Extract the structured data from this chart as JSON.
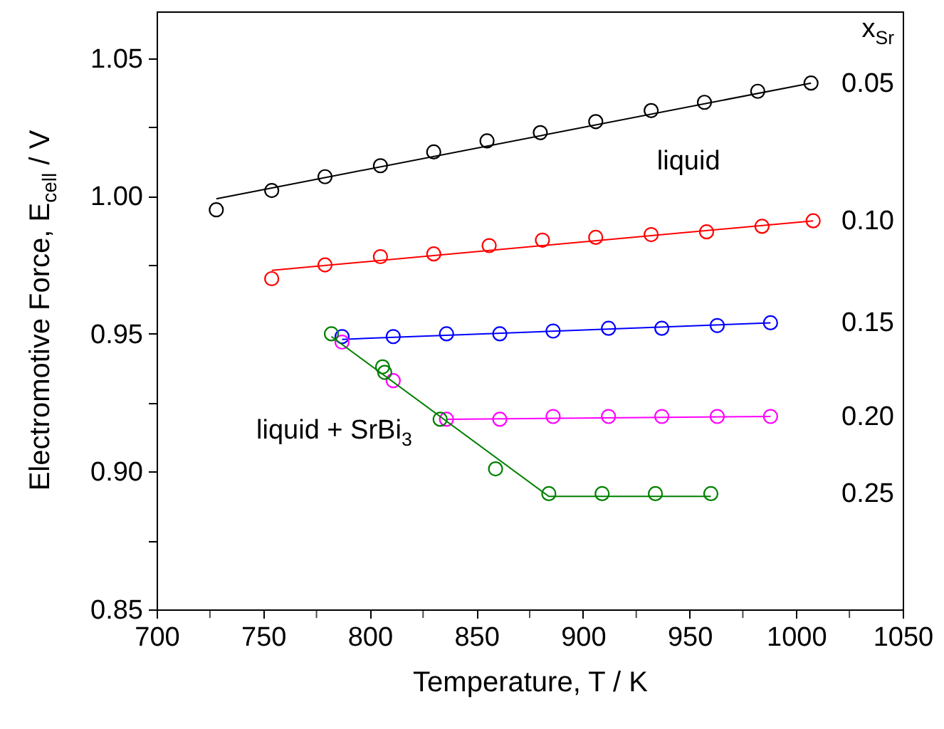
{
  "chart_data": {
    "type": "scatter",
    "xlabel": "Temperature, T / K",
    "ylabel": "Electromotive Force, E$_{cell}$ / V",
    "legend_title": "x$_{Sr}$",
    "legend": "right",
    "xlim": [
      700,
      1050
    ],
    "ylim": [
      0.85,
      1.067
    ],
    "xticks": [
      700,
      {
        "value": 725,
        "label": null
      },
      750,
      {
        "value": 775,
        "label": null
      },
      800,
      {
        "value": 825,
        "label": null
      },
      850,
      {
        "value": 875,
        "label": null
      },
      900,
      {
        "value": 925,
        "label": null
      },
      950,
      {
        "value": 975,
        "label": null
      },
      1000,
      {
        "value": 1025,
        "label": null
      },
      1050
    ],
    "yticks": [
      0.85,
      {
        "value": 0.875,
        "label": null
      },
      {
        "value": 0.9,
        "label": "0.90"
      },
      {
        "value": 0.925,
        "label": null
      },
      {
        "value": 0.95,
        "label": "0.95"
      },
      {
        "value": 0.975,
        "label": null
      },
      {
        "value": 1.0,
        "label": "1.00"
      },
      {
        "value": 1.025,
        "label": null
      },
      1.05
    ],
    "series": [
      {
        "name": "0.05",
        "color": "#000000",
        "marker": "circle",
        "x": [
          728,
          754,
          779,
          805,
          830,
          855,
          880,
          906,
          932,
          957,
          982,
          1007
        ],
        "values": [
          0.995,
          1.002,
          1.007,
          1.011,
          1.016,
          1.02,
          1.023,
          1.027,
          1.031,
          1.034,
          1.038,
          1.041
        ]
      },
      {
        "type": "line",
        "color": "#000000",
        "marker": "none",
        "x": [
          728,
          1007
        ],
        "values": [
          0.999,
          1.041
        ]
      },
      {
        "name": "0.10",
        "color": "#ff0000",
        "marker": "circle",
        "x": [
          754,
          779,
          805,
          830,
          856,
          881,
          906,
          932,
          958,
          984,
          1008
        ],
        "values": [
          0.97,
          0.975,
          0.978,
          0.979,
          0.982,
          0.984,
          0.985,
          0.986,
          0.987,
          0.989,
          0.991
        ]
      },
      {
        "type": "line",
        "color": "#ff0000",
        "marker": "none",
        "x": [
          754,
          1008
        ],
        "values": [
          0.973,
          0.991
        ]
      },
      {
        "name": "0.15",
        "color": "#0000ff",
        "marker": "circle",
        "x": [
          787,
          811,
          836,
          861,
          886,
          912,
          937,
          963,
          988
        ],
        "values": [
          0.949,
          0.949,
          0.95,
          0.95,
          0.951,
          0.952,
          0.952,
          0.953,
          0.954
        ]
      },
      {
        "type": "line",
        "color": "#0000ff",
        "marker": "none",
        "x": [
          787,
          988
        ],
        "values": [
          0.948,
          0.954
        ]
      },
      {
        "name": "0.20",
        "color": "#ff00ff",
        "marker": "circle",
        "x": [
          787,
          811,
          836,
          861,
          886,
          912,
          937,
          963,
          988
        ],
        "values": [
          0.947,
          0.933,
          0.919,
          0.919,
          0.92,
          0.92,
          0.92,
          0.92,
          0.92
        ]
      },
      {
        "type": "line",
        "color": "#ff00ff",
        "marker": "none",
        "x": [
          836,
          988
        ],
        "values": [
          0.919,
          0.92
        ]
      },
      {
        "name": "0.25",
        "color": "#008000",
        "marker": "circle",
        "x": [
          782,
          806,
          807,
          833,
          859,
          884,
          909,
          934,
          960
        ],
        "values": [
          0.95,
          0.938,
          0.936,
          0.919,
          0.901,
          0.892,
          0.892,
          0.892,
          0.892
        ]
      },
      {
        "type": "line",
        "color": "#008000",
        "marker": "none",
        "x": [
          782,
          884,
          960
        ],
        "values": [
          0.949,
          0.891,
          0.891
        ]
      }
    ],
    "annotations": [
      "liquid",
      "liquid + SrBi$_{3}$"
    ]
  }
}
